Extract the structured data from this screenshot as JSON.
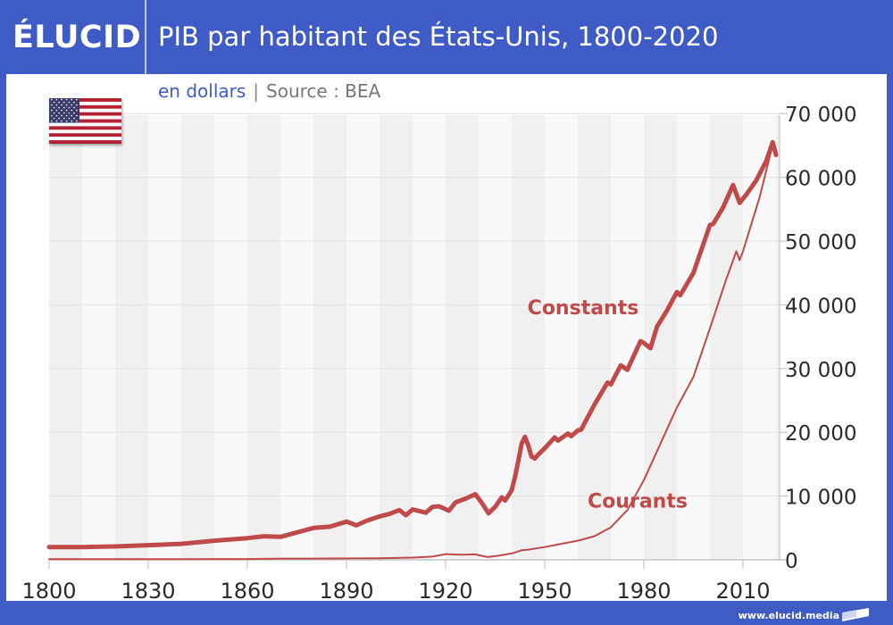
{
  "header": {
    "logo": "ÉLUCID",
    "title": "PIB par habitant des États-Unis, 1800-2020"
  },
  "subtitle": {
    "unit": "en dollars",
    "separator": "|",
    "source": "Source : BEA"
  },
  "flag": {
    "country": "United States",
    "icon": "us-flag-icon"
  },
  "footer": {
    "url": "www.elucid.media",
    "icon": "elucid-flag-icon"
  },
  "colors": {
    "brand": "#3f5bc6",
    "series": "#c0494a",
    "band_dark": "#f0f0f0",
    "band_light": "#f9f9f9",
    "grid": "#e2e2e2"
  },
  "chart_data": {
    "type": "line",
    "title": "PIB par habitant des États-Unis, 1800-2020",
    "subtitle": "en dollars | Source : BEA",
    "xlabel": "",
    "ylabel": "",
    "xlim": [
      1800,
      2021
    ],
    "ylim": [
      0,
      70000
    ],
    "grid": true,
    "yaxis_position": "right",
    "xticks": [
      1800,
      1830,
      1860,
      1890,
      1920,
      1950,
      1980,
      2010
    ],
    "xtick_labels": [
      "1800",
      "1830",
      "1860",
      "1890",
      "1920",
      "1950",
      "1980",
      "2010"
    ],
    "yticks": [
      0,
      10000,
      20000,
      30000,
      40000,
      50000,
      60000,
      70000
    ],
    "ytick_labels": [
      "0",
      "10 000",
      "20 000",
      "30 000",
      "40 000",
      "50 000",
      "60 000",
      "70 000"
    ],
    "series": [
      {
        "name": "Constants",
        "label": "Constants",
        "label_anchor": [
          1980,
          38500
        ],
        "style": "thick",
        "x": [
          1800,
          1810,
          1820,
          1830,
          1840,
          1850,
          1860,
          1865,
          1870,
          1875,
          1880,
          1885,
          1890,
          1893,
          1896,
          1900,
          1903,
          1906,
          1908,
          1910,
          1914,
          1916,
          1918,
          1921,
          1923,
          1926,
          1929,
          1931,
          1933,
          1935,
          1937,
          1938,
          1940,
          1941,
          1942,
          1943,
          1944,
          1945,
          1946,
          1947,
          1948,
          1950,
          1953,
          1954,
          1957,
          1958,
          1960,
          1961,
          1965,
          1969,
          1970,
          1973,
          1975,
          1979,
          1980,
          1982,
          1984,
          1987,
          1990,
          1991,
          1995,
          2000,
          2001,
          2004,
          2007,
          2009,
          2011,
          2014,
          2017,
          2019,
          2020
        ],
        "values": [
          2000,
          2000,
          2100,
          2300,
          2500,
          3000,
          3400,
          3700,
          3600,
          4300,
          5000,
          5200,
          6000,
          5400,
          6100,
          6800,
          7200,
          7800,
          7000,
          7900,
          7400,
          8300,
          8400,
          7700,
          9000,
          9600,
          10300,
          8900,
          7300,
          8300,
          9800,
          9300,
          10900,
          13000,
          15500,
          18200,
          19300,
          18000,
          16200,
          15900,
          16500,
          17500,
          19200,
          18700,
          19800,
          19400,
          20300,
          20400,
          24300,
          27800,
          27500,
          30500,
          29800,
          34300,
          34000,
          33200,
          36600,
          39100,
          42000,
          41500,
          45000,
          52500,
          52700,
          55300,
          58800,
          56000,
          57300,
          59500,
          62500,
          65500,
          63500
        ]
      },
      {
        "name": "Courants",
        "label": "Courants",
        "label_anchor": [
          2000,
          8200
        ],
        "style": "thin",
        "x": [
          1800,
          1820,
          1840,
          1860,
          1870,
          1880,
          1890,
          1900,
          1910,
          1916,
          1920,
          1925,
          1929,
          1932,
          1933,
          1936,
          1940,
          1943,
          1945,
          1948,
          1950,
          1955,
          1960,
          1965,
          1970,
          1975,
          1980,
          1985,
          1990,
          1995,
          2000,
          2005,
          2008,
          2009,
          2010,
          2015,
          2019,
          2020
        ],
        "values": [
          100,
          110,
          100,
          120,
          200,
          200,
          230,
          250,
          350,
          500,
          900,
          800,
          850,
          500,
          450,
          650,
          1000,
          1500,
          1600,
          1850,
          2000,
          2500,
          3000,
          3700,
          5100,
          7800,
          12500,
          18200,
          23900,
          28700,
          36300,
          44100,
          48400,
          47000,
          48400,
          56800,
          65100,
          63500
        ]
      }
    ]
  }
}
